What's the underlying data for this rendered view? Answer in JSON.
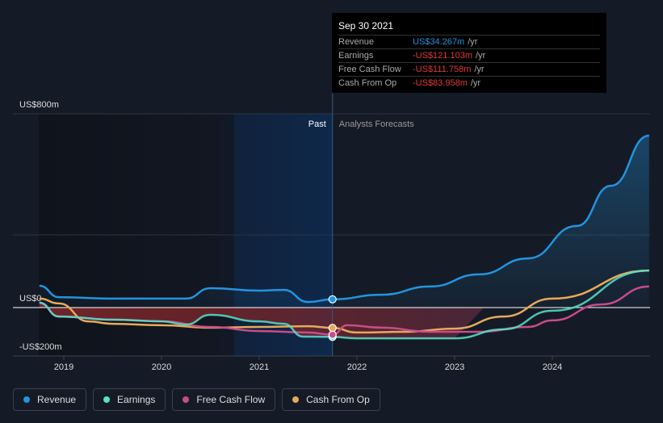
{
  "chart_data": {
    "type": "line",
    "y_axis": {
      "labels": [
        "US$800m",
        "US$0",
        "-US$200m"
      ],
      "ylim": [
        -200,
        800
      ]
    },
    "x_axis": {
      "ticks": [
        "2019",
        "2020",
        "2021",
        "2022",
        "2023",
        "2024"
      ],
      "xlim": [
        2018.5,
        2025
      ]
    },
    "past_label": "Past",
    "forecast_label": "Analysts Forecasts",
    "divider_x": 2021.75,
    "series": [
      {
        "name": "Revenue",
        "color": "#2394df",
        "points": [
          [
            2018.75,
            90
          ],
          [
            2018.95,
            43
          ],
          [
            2019.5,
            37
          ],
          [
            2020.25,
            37
          ],
          [
            2020.5,
            80
          ],
          [
            2021,
            70
          ],
          [
            2021.25,
            73
          ],
          [
            2021.5,
            23
          ],
          [
            2021.75,
            34
          ],
          [
            2022.25,
            53
          ],
          [
            2022.75,
            87
          ],
          [
            2023.25,
            137
          ],
          [
            2023.75,
            203
          ],
          [
            2024.25,
            337
          ],
          [
            2024.6,
            503
          ],
          [
            2024.99,
            710
          ]
        ]
      },
      {
        "name": "Earnings",
        "color": "#58e1c9",
        "points": [
          [
            2018.75,
            20
          ],
          [
            2018.95,
            -37
          ],
          [
            2019.5,
            -50
          ],
          [
            2020,
            -57
          ],
          [
            2020.25,
            -70
          ],
          [
            2020.5,
            -30
          ],
          [
            2021,
            -57
          ],
          [
            2021.25,
            -67
          ],
          [
            2021.45,
            -120
          ],
          [
            2021.75,
            -121
          ],
          [
            2022,
            -127
          ],
          [
            2023,
            -127
          ],
          [
            2023.5,
            -90
          ],
          [
            2024,
            -13
          ],
          [
            2024.99,
            153
          ]
        ]
      },
      {
        "name": "Free Cash Flow",
        "color": "#c94b8b",
        "points": [
          [
            2018.75,
            20
          ],
          [
            2018.95,
            -37
          ],
          [
            2019.5,
            -50
          ],
          [
            2020,
            -57
          ],
          [
            2020.5,
            -80
          ],
          [
            2021,
            -97
          ],
          [
            2021.5,
            -103
          ],
          [
            2021.75,
            -112
          ],
          [
            2021.9,
            -73
          ],
          [
            2022.25,
            -83
          ],
          [
            2022.75,
            -100
          ],
          [
            2023.25,
            -100
          ],
          [
            2023.75,
            -80
          ],
          [
            2024,
            -53
          ],
          [
            2024.5,
            13
          ],
          [
            2024.99,
            87
          ]
        ]
      },
      {
        "name": "Cash From Op",
        "color": "#e7a95a",
        "points": [
          [
            2018.75,
            37
          ],
          [
            2018.95,
            17
          ],
          [
            2019.25,
            -57
          ],
          [
            2019.5,
            -67
          ],
          [
            2020,
            -73
          ],
          [
            2020.5,
            -83
          ],
          [
            2021,
            -80
          ],
          [
            2021.5,
            -77
          ],
          [
            2021.75,
            -84
          ],
          [
            2022,
            -103
          ],
          [
            2022.5,
            -100
          ],
          [
            2023,
            -87
          ],
          [
            2023.5,
            -37
          ],
          [
            2024,
            37
          ],
          [
            2024.99,
            153
          ]
        ]
      }
    ]
  },
  "tooltip": {
    "date": "Sep 30 2021",
    "unit": "/yr",
    "rows": [
      {
        "label": "Revenue",
        "value": "US$34.267m",
        "color": "#2394df"
      },
      {
        "label": "Earnings",
        "value": "-US$121.103m",
        "color": "#e2393b"
      },
      {
        "label": "Free Cash Flow",
        "value": "-US$111.758m",
        "color": "#e2393b"
      },
      {
        "label": "Cash From Op",
        "value": "-US$83.958m",
        "color": "#e2393b"
      }
    ]
  }
}
